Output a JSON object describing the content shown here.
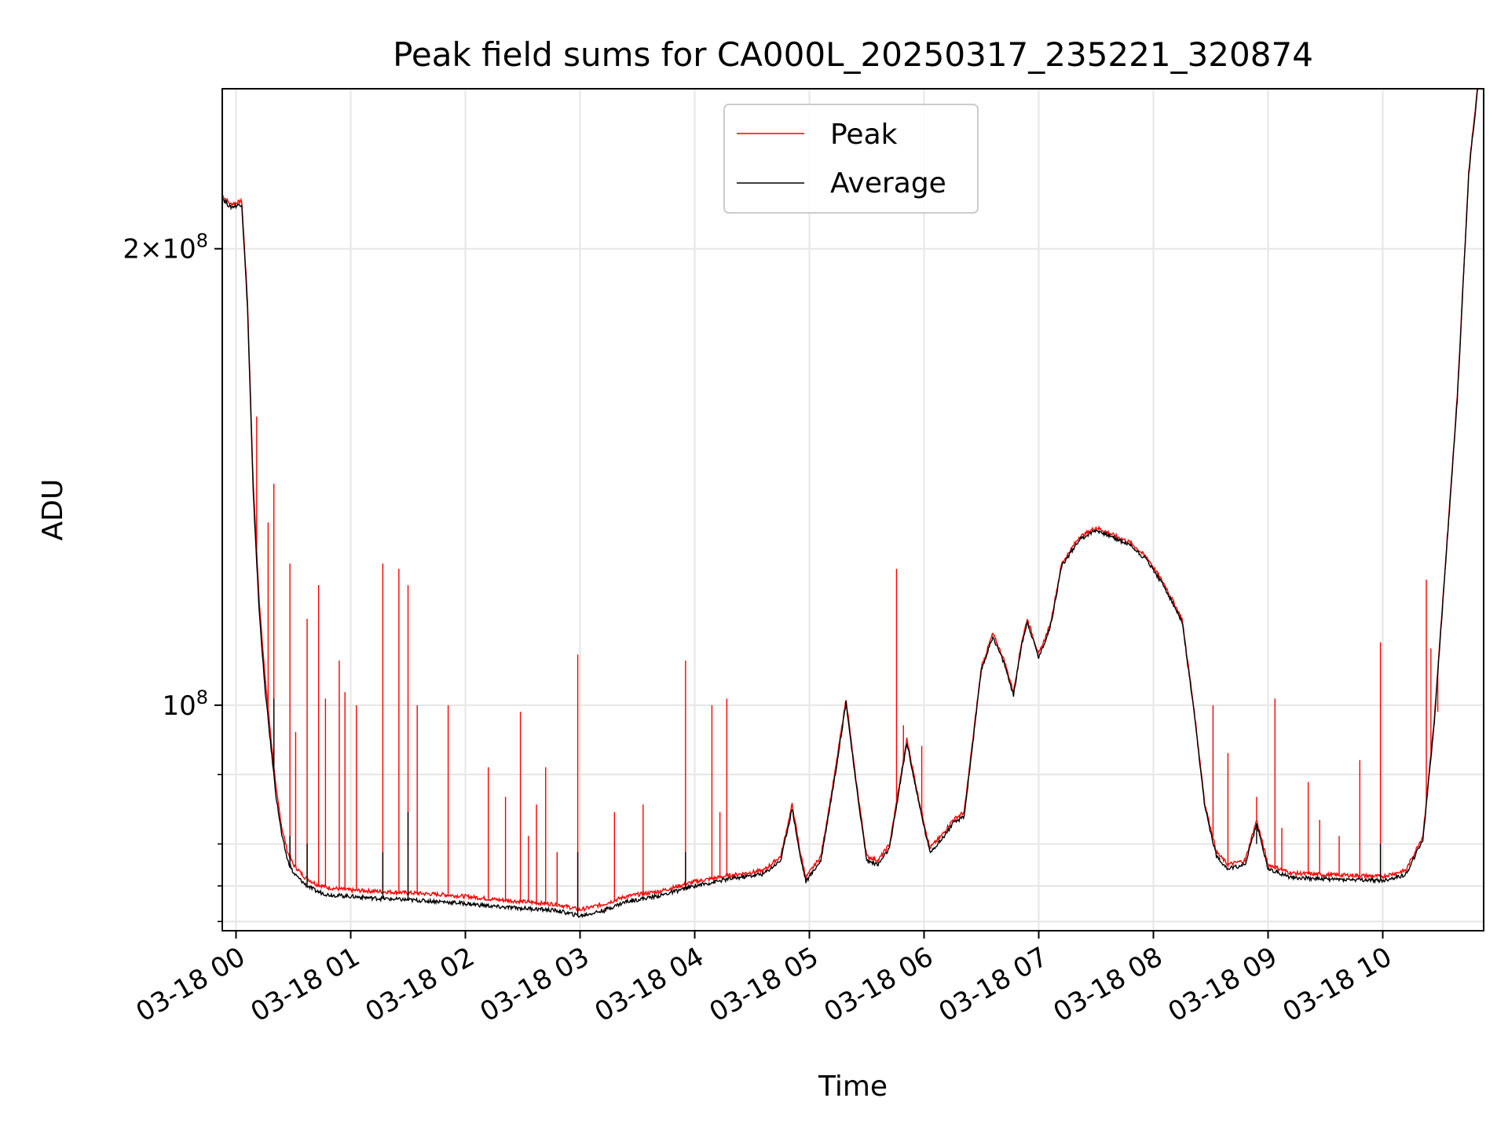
{
  "chart_data": {
    "type": "line",
    "title": "Peak field sums for CA000L_20250317_235221_320874",
    "xlabel": "Time",
    "ylabel": "ADU",
    "yscale": "log",
    "xlim": [
      -0.12,
      10.88
    ],
    "ylim": [
      71000000,
      255000000
    ],
    "x_ticks": [
      {
        "label": "03-18 00",
        "value": 0
      },
      {
        "label": "03-18 01",
        "value": 1
      },
      {
        "label": "03-18 02",
        "value": 2
      },
      {
        "label": "03-18 03",
        "value": 3
      },
      {
        "label": "03-18 04",
        "value": 4
      },
      {
        "label": "03-18 05",
        "value": 5
      },
      {
        "label": "03-18 06",
        "value": 6
      },
      {
        "label": "03-18 07",
        "value": 7
      },
      {
        "label": "03-18 08",
        "value": 8
      },
      {
        "label": "03-18 09",
        "value": 9
      },
      {
        "label": "03-18 10",
        "value": 10
      }
    ],
    "y_major_ticks": [
      {
        "mantissa": "2",
        "exponent": "8",
        "value": 200000000
      },
      {
        "mantissa": "",
        "exponent": "8",
        "value": 100000000
      }
    ],
    "y_minor_ticks": [
      72000000,
      76000000,
      81000000,
      90000000
    ],
    "grid": true,
    "legend_position": "top-center",
    "colors": {
      "peak": "#ff0000",
      "average": "#000000",
      "grid": "#e6e6e6"
    },
    "series": [
      {
        "name": "Peak",
        "color": "#ff0000",
        "points": [
          [
            -0.12,
            217000000
          ],
          [
            -0.05,
            214000000
          ],
          [
            0.05,
            215000000
          ],
          [
            0.1,
            185000000
          ],
          [
            0.15,
            140000000
          ],
          [
            0.2,
            118000000
          ],
          [
            0.25,
            105000000
          ],
          [
            0.3,
            96000000
          ],
          [
            0.35,
            88000000
          ],
          [
            0.4,
            83000000
          ],
          [
            0.45,
            80000000
          ],
          [
            0.5,
            78500000
          ],
          [
            0.6,
            77000000
          ],
          [
            0.7,
            76200000
          ],
          [
            0.8,
            75800000
          ],
          [
            1.0,
            75500000
          ],
          [
            1.2,
            75400000
          ],
          [
            1.5,
            75200000
          ],
          [
            1.8,
            75000000
          ],
          [
            2.0,
            74800000
          ],
          [
            2.3,
            74400000
          ],
          [
            2.6,
            74100000
          ],
          [
            2.8,
            73900000
          ],
          [
            3.0,
            73300000
          ],
          [
            3.2,
            73900000
          ],
          [
            3.4,
            74800000
          ],
          [
            3.7,
            75400000
          ],
          [
            4.0,
            76500000
          ],
          [
            4.3,
            77200000
          ],
          [
            4.6,
            77800000
          ],
          [
            4.75,
            79500000
          ],
          [
            4.85,
            86000000
          ],
          [
            4.92,
            80000000
          ],
          [
            4.97,
            77000000
          ],
          [
            5.1,
            79500000
          ],
          [
            5.22,
            90000000
          ],
          [
            5.32,
            101000000
          ],
          [
            5.4,
            90000000
          ],
          [
            5.5,
            79500000
          ],
          [
            5.6,
            79000000
          ],
          [
            5.7,
            81000000
          ],
          [
            5.85,
            95000000
          ],
          [
            5.95,
            87000000
          ],
          [
            6.05,
            80500000
          ],
          [
            6.15,
            82000000
          ],
          [
            6.25,
            84000000
          ],
          [
            6.35,
            85000000
          ],
          [
            6.5,
            106000000
          ],
          [
            6.6,
            111500000
          ],
          [
            6.7,
            107000000
          ],
          [
            6.78,
            102000000
          ],
          [
            6.85,
            110000000
          ],
          [
            6.9,
            114000000
          ],
          [
            6.95,
            111000000
          ],
          [
            7.0,
            108000000
          ],
          [
            7.1,
            113000000
          ],
          [
            7.2,
            124000000
          ],
          [
            7.35,
            129000000
          ],
          [
            7.5,
            131000000
          ],
          [
            7.6,
            130000000
          ],
          [
            7.8,
            128000000
          ],
          [
            7.95,
            125000000
          ],
          [
            8.1,
            120000000
          ],
          [
            8.25,
            114000000
          ],
          [
            8.35,
            100000000
          ],
          [
            8.45,
            86000000
          ],
          [
            8.55,
            80000000
          ],
          [
            8.65,
            78500000
          ],
          [
            8.8,
            79000000
          ],
          [
            8.9,
            84000000
          ],
          [
            9.0,
            78500000
          ],
          [
            9.2,
            77500000
          ],
          [
            9.5,
            77300000
          ],
          [
            9.8,
            77200000
          ],
          [
            10.0,
            77100000
          ],
          [
            10.2,
            77800000
          ],
          [
            10.35,
            82000000
          ],
          [
            10.45,
            98000000
          ],
          [
            10.55,
            125000000
          ],
          [
            10.65,
            160000000
          ],
          [
            10.75,
            225000000
          ],
          [
            10.88,
            280000000
          ]
        ],
        "spikes": [
          [
            0.18,
            155000000
          ],
          [
            0.28,
            132000000
          ],
          [
            0.33,
            140000000
          ],
          [
            0.47,
            124000000
          ],
          [
            0.52,
            96000000
          ],
          [
            0.62,
            114000000
          ],
          [
            0.72,
            120000000
          ],
          [
            0.78,
            101000000
          ],
          [
            0.9,
            107000000
          ],
          [
            0.95,
            102000000
          ],
          [
            1.05,
            100000000
          ],
          [
            1.28,
            124000000
          ],
          [
            1.42,
            123000000
          ],
          [
            1.5,
            120000000
          ],
          [
            1.58,
            100000000
          ],
          [
            1.85,
            100000000
          ],
          [
            2.2,
            91000000
          ],
          [
            2.35,
            87000000
          ],
          [
            2.48,
            99000000
          ],
          [
            2.55,
            82000000
          ],
          [
            2.62,
            86000000
          ],
          [
            2.7,
            91000000
          ],
          [
            2.8,
            80000000
          ],
          [
            2.98,
            108000000
          ],
          [
            3.3,
            85000000
          ],
          [
            3.55,
            86000000
          ],
          [
            3.92,
            107000000
          ],
          [
            4.15,
            100000000
          ],
          [
            4.22,
            85000000
          ],
          [
            4.28,
            101000000
          ],
          [
            5.76,
            123000000
          ],
          [
            5.82,
            97000000
          ],
          [
            5.98,
            94000000
          ],
          [
            8.52,
            100000000
          ],
          [
            8.65,
            93000000
          ],
          [
            8.9,
            87000000
          ],
          [
            9.06,
            101000000
          ],
          [
            9.12,
            83000000
          ],
          [
            9.35,
            89000000
          ],
          [
            9.45,
            84000000
          ],
          [
            9.62,
            82000000
          ],
          [
            9.8,
            92000000
          ],
          [
            9.98,
            110000000
          ],
          [
            10.38,
            121000000
          ],
          [
            10.42,
            109000000
          ],
          [
            10.48,
            99000000
          ]
        ]
      },
      {
        "name": "Average",
        "color": "#000000",
        "points": [
          [
            -0.12,
            216000000
          ],
          [
            -0.05,
            213000000
          ],
          [
            0.05,
            214000000
          ],
          [
            0.1,
            183000000
          ],
          [
            0.15,
            138000000
          ],
          [
            0.2,
            116000000
          ],
          [
            0.25,
            103000000
          ],
          [
            0.3,
            94500000
          ],
          [
            0.35,
            87000000
          ],
          [
            0.4,
            82000000
          ],
          [
            0.45,
            79000000
          ],
          [
            0.5,
            77500000
          ],
          [
            0.6,
            76200000
          ],
          [
            0.7,
            75400000
          ],
          [
            0.8,
            75000000
          ],
          [
            1.0,
            74800000
          ],
          [
            1.2,
            74600000
          ],
          [
            1.5,
            74400000
          ],
          [
            1.8,
            74200000
          ],
          [
            2.0,
            74000000
          ],
          [
            2.3,
            73600000
          ],
          [
            2.6,
            73400000
          ],
          [
            2.8,
            73200000
          ],
          [
            3.0,
            72600000
          ],
          [
            3.2,
            73200000
          ],
          [
            3.4,
            74200000
          ],
          [
            3.7,
            74900000
          ],
          [
            4.0,
            76000000
          ],
          [
            4.3,
            76800000
          ],
          [
            4.6,
            77400000
          ],
          [
            4.75,
            79000000
          ],
          [
            4.85,
            85500000
          ],
          [
            4.92,
            79500000
          ],
          [
            4.97,
            76500000
          ],
          [
            5.1,
            79000000
          ],
          [
            5.22,
            89500000
          ],
          [
            5.32,
            100500000
          ],
          [
            5.4,
            89500000
          ],
          [
            5.5,
            79000000
          ],
          [
            5.6,
            78500000
          ],
          [
            5.7,
            80500000
          ],
          [
            5.85,
            94500000
          ],
          [
            5.95,
            86500000
          ],
          [
            6.05,
            80000000
          ],
          [
            6.15,
            81500000
          ],
          [
            6.25,
            83500000
          ],
          [
            6.35,
            84500000
          ],
          [
            6.5,
            105500000
          ],
          [
            6.6,
            111000000
          ],
          [
            6.7,
            106500000
          ],
          [
            6.78,
            101500000
          ],
          [
            6.85,
            109500000
          ],
          [
            6.9,
            113500000
          ],
          [
            6.95,
            110500000
          ],
          [
            7.0,
            107500000
          ],
          [
            7.1,
            112500000
          ],
          [
            7.2,
            123500000
          ],
          [
            7.35,
            128500000
          ],
          [
            7.5,
            130500000
          ],
          [
            7.6,
            129500000
          ],
          [
            7.8,
            127500000
          ],
          [
            7.95,
            124500000
          ],
          [
            8.1,
            119500000
          ],
          [
            8.25,
            113500000
          ],
          [
            8.35,
            99500000
          ],
          [
            8.45,
            85500000
          ],
          [
            8.55,
            79500000
          ],
          [
            8.65,
            78000000
          ],
          [
            8.8,
            78500000
          ],
          [
            8.9,
            83500000
          ],
          [
            9.0,
            78000000
          ],
          [
            9.2,
            77000000
          ],
          [
            9.5,
            76800000
          ],
          [
            9.8,
            76700000
          ],
          [
            10.0,
            76600000
          ],
          [
            10.2,
            77300000
          ],
          [
            10.35,
            81500000
          ],
          [
            10.45,
            97500000
          ],
          [
            10.55,
            124500000
          ],
          [
            10.65,
            159000000
          ],
          [
            10.75,
            224000000
          ],
          [
            10.88,
            278000000
          ]
        ],
        "spikes": [
          [
            0.33,
            101000000
          ],
          [
            0.47,
            82000000
          ],
          [
            0.62,
            81000000
          ],
          [
            1.28,
            80000000
          ],
          [
            1.5,
            85000000
          ],
          [
            2.98,
            80000000
          ],
          [
            3.92,
            80000000
          ],
          [
            8.9,
            81000000
          ],
          [
            9.98,
            81000000
          ]
        ]
      }
    ]
  }
}
